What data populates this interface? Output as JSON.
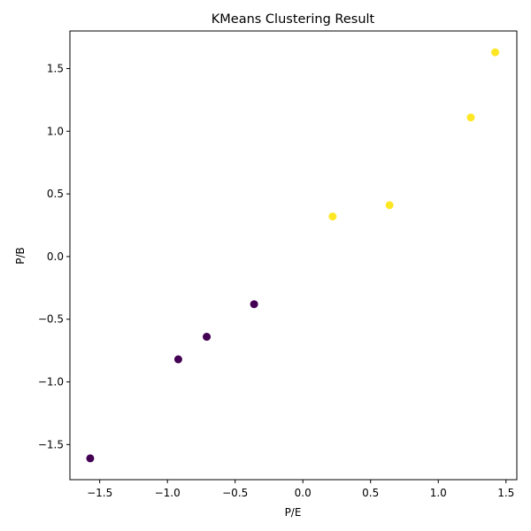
{
  "chart_data": {
    "type": "scatter",
    "title": "KMeans Clustering Result",
    "xlabel": "P/E",
    "ylabel": "P/B",
    "xlim": [
      -1.72,
      1.58
    ],
    "ylim": [
      -1.78,
      1.8
    ],
    "xticks": [
      -1.5,
      -1.0,
      -0.5,
      0.0,
      0.5,
      1.0,
      1.5
    ],
    "xtick_labels": [
      "−1.5",
      "−1.0",
      "−0.5",
      "0.0",
      "0.5",
      "1.0",
      "1.5"
    ],
    "yticks": [
      -1.5,
      -1.0,
      -0.5,
      0.0,
      0.5,
      1.0,
      1.5
    ],
    "ytick_labels": [
      "−1.5",
      "−1.0",
      "−0.5",
      "0.0",
      "0.5",
      "1.0",
      "1.5"
    ],
    "grid": false,
    "legend": "none",
    "cluster_colors": [
      "#440154",
      "#fde725"
    ],
    "points": [
      {
        "x": -1.57,
        "y": -1.61,
        "cluster": 0
      },
      {
        "x": -0.92,
        "y": -0.82,
        "cluster": 0
      },
      {
        "x": -0.71,
        "y": -0.64,
        "cluster": 0
      },
      {
        "x": -0.36,
        "y": -0.38,
        "cluster": 0
      },
      {
        "x": 0.22,
        "y": 0.32,
        "cluster": 1
      },
      {
        "x": 0.64,
        "y": 0.41,
        "cluster": 1
      },
      {
        "x": 1.24,
        "y": 1.11,
        "cluster": 1
      },
      {
        "x": 1.42,
        "y": 1.63,
        "cluster": 1
      }
    ]
  }
}
